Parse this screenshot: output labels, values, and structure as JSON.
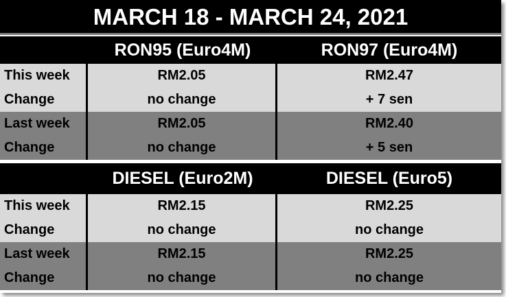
{
  "title": "MARCH 18 - MARCH 24,  2021",
  "tables": [
    {
      "headers": [
        "RON95 (Euro4M)",
        "RON97 (Euro4M)"
      ],
      "this_week": {
        "label": "This week",
        "change_label": "Change",
        "values": [
          "RM2.05",
          "RM2.47"
        ],
        "changes": [
          "no change",
          "+ 7 sen"
        ]
      },
      "last_week": {
        "label": "Last week",
        "change_label": "Change",
        "values": [
          "RM2.05",
          "RM2.40"
        ],
        "changes": [
          "no change",
          "+ 5 sen"
        ]
      }
    },
    {
      "headers": [
        "DIESEL (Euro2M)",
        "DIESEL (Euro5)"
      ],
      "this_week": {
        "label": "This week",
        "change_label": "Change",
        "values": [
          "RM2.15",
          "RM2.25"
        ],
        "changes": [
          "no change",
          "no change"
        ]
      },
      "last_week": {
        "label": "Last week",
        "change_label": "Change",
        "values": [
          "RM2.15",
          "RM2.25"
        ],
        "changes": [
          "no change",
          "no change"
        ]
      }
    }
  ],
  "colors": {
    "header": "#000000",
    "this_week_row": "#d9d9d9",
    "last_week_row": "#808080"
  }
}
